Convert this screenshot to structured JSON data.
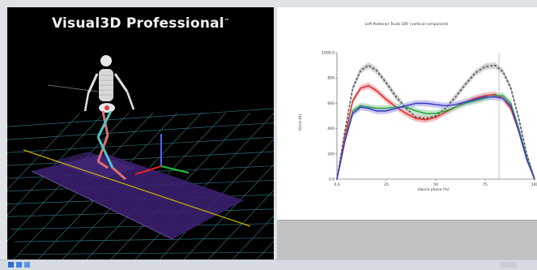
{
  "viewer": {
    "title": "Visual3D Professional",
    "trademark": "™"
  },
  "chart_data": {
    "type": "line",
    "title": "Left Posterior Trunk GRF (vertical component)",
    "xlabel": "stance phase (%)",
    "ylabel": "Force (N)",
    "xlim": [
      0,
      100
    ],
    "ylim": [
      0,
      1000
    ],
    "x_ticks": [
      "0.0",
      "25",
      "50",
      "75",
      "100"
    ],
    "y_ticks": [
      "1000.0",
      "800",
      "600",
      "400",
      "200",
      "0.0"
    ],
    "grid": false,
    "vertical_marker_x": 82,
    "x": [
      0,
      4,
      8,
      12,
      16,
      20,
      25,
      30,
      35,
      40,
      45,
      50,
      55,
      60,
      65,
      70,
      75,
      80,
      84,
      88,
      92,
      96,
      100
    ],
    "series": [
      {
        "color": "#555555",
        "dashed": true,
        "band_color": "#cccccc",
        "values": [
          0,
          380,
          720,
          860,
          900,
          860,
          760,
          650,
          560,
          490,
          480,
          500,
          560,
          650,
          750,
          840,
          890,
          900,
          850,
          720,
          480,
          200,
          0
        ]
      },
      {
        "color": "#e03030",
        "band_color": "#f4b4b4",
        "values": [
          0,
          330,
          620,
          720,
          740,
          700,
          630,
          570,
          520,
          480,
          470,
          490,
          530,
          570,
          610,
          640,
          660,
          670,
          640,
          560,
          380,
          160,
          0
        ]
      },
      {
        "color": "#2fa84a",
        "band_color": "#b8e0c0",
        "values": [
          0,
          300,
          540,
          580,
          570,
          560,
          560,
          570,
          570,
          540,
          520,
          520,
          540,
          570,
          600,
          620,
          640,
          660,
          660,
          600,
          400,
          170,
          0
        ]
      },
      {
        "color": "#4040c8",
        "band_color": "#c0c0ee",
        "values": [
          0,
          300,
          520,
          570,
          560,
          540,
          540,
          560,
          580,
          600,
          600,
          590,
          580,
          590,
          610,
          630,
          650,
          650,
          640,
          580,
          380,
          160,
          0
        ]
      }
    ]
  },
  "colors": {
    "viewer_bg": "#000000",
    "floor_grid": "#2e6f78",
    "walkway": "#3a1f6e",
    "walkway_line": "#c8b400"
  },
  "taskbar": {
    "icons": [
      "start-icon",
      "folder-icon",
      "app-icon"
    ]
  }
}
